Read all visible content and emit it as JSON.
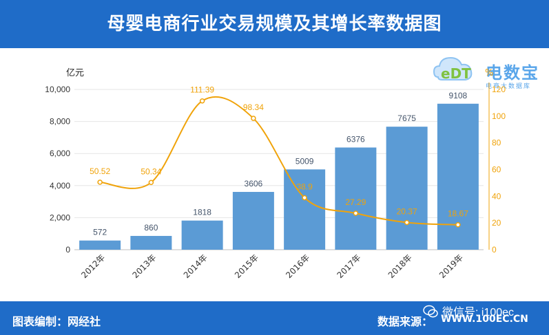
{
  "header": {
    "title": "母婴电商行业交易规模及其增长率数据图"
  },
  "footer": {
    "left_label": "图表编制：网经社",
    "right_label": "数据来源：",
    "source_url": "WWW.100EC.CN",
    "wechat_label": "微信号: i100ec"
  },
  "logo": {
    "letters": "eDT",
    "name": "电数宝",
    "subtitle": "电商大数据库"
  },
  "colors": {
    "bar": "#5b9bd5",
    "line": "#f0a30a",
    "header": "#1f6cc8",
    "value_label": "#44546a"
  },
  "chart_data": {
    "type": "bar",
    "categories": [
      "2012年",
      "2013年",
      "2014年",
      "2015年",
      "2016年",
      "2017年",
      "2018年",
      "2019年"
    ],
    "series": [
      {
        "values": [
          572,
          860,
          1818,
          3606,
          5009,
          6376,
          7675,
          9108
        ],
        "axis": "left",
        "type": "bar"
      },
      {
        "values": [
          50.52,
          50.34,
          111.39,
          98.34,
          38.9,
          27.29,
          20.37,
          18.67
        ],
        "axis": "right",
        "type": "line"
      }
    ],
    "ylabel": "亿元",
    "y2label": "%",
    "ylim": [
      0,
      10000
    ],
    "y2lim": [
      0,
      120
    ],
    "yticks": [
      "0",
      "2,000",
      "4,000",
      "6,000",
      "8,000",
      "10,000"
    ],
    "y2ticks": [
      "0",
      "20",
      "40",
      "60",
      "80",
      "100",
      "120"
    ],
    "bar_labels": [
      "572",
      "860",
      "1818",
      "3606",
      "5009",
      "6376",
      "7675",
      "9108"
    ],
    "line_labels": [
      "50.52",
      "50.34",
      "111.39",
      "98.34",
      "38.9",
      "27.29",
      "20.37",
      "18.67"
    ],
    "grid": "horizontal",
    "legend": "none"
  }
}
